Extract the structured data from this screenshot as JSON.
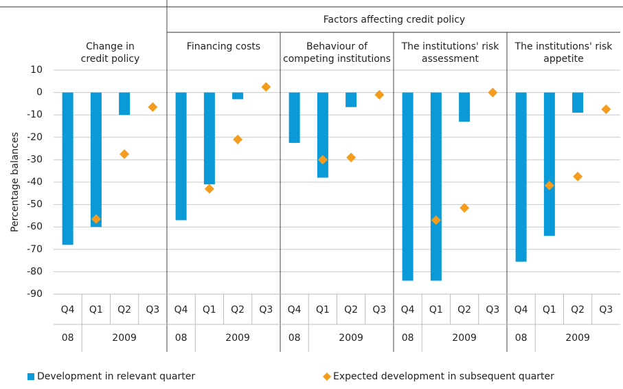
{
  "chart_data": {
    "type": "bar",
    "super_group": "Factors affecting credit policy",
    "y_label": "Percentage balances",
    "groups": [
      {
        "name_lines": [
          "Change in",
          "credit policy"
        ],
        "quarters": [
          "Q4",
          "Q1",
          "Q2",
          "Q3"
        ],
        "years": [
          "08",
          "2009"
        ]
      },
      {
        "name_lines": [
          "Financing costs"
        ],
        "quarters": [
          "Q4",
          "Q1",
          "Q2",
          "Q3"
        ],
        "years": [
          "08",
          "2009"
        ]
      },
      {
        "name_lines": [
          "Behaviour of",
          "competing institutions"
        ],
        "quarters": [
          "Q4",
          "Q1",
          "Q2",
          "Q3"
        ],
        "years": [
          "08",
          "2009"
        ]
      },
      {
        "name_lines": [
          "The institutions' risk",
          "assessment"
        ],
        "quarters": [
          "Q4",
          "Q1",
          "Q2",
          "Q3"
        ],
        "years": [
          "08",
          "2009"
        ]
      },
      {
        "name_lines": [
          "The institutions' risk",
          "appetite"
        ],
        "quarters": [
          "Q4",
          "Q1",
          "Q2",
          "Q3"
        ],
        "years": [
          "08",
          "2009"
        ]
      }
    ],
    "series": [
      {
        "name": "Development in relevant quarter",
        "color": "#0a9ad7",
        "marker": "bar",
        "values": [
          -68,
          -60,
          -10,
          null,
          -57,
          -41,
          -3,
          null,
          -22.5,
          -38,
          -6.5,
          null,
          -84,
          -84,
          -13,
          null,
          -75.5,
          -64,
          -9,
          null
        ]
      },
      {
        "name": "Expected development in subsequent quarter",
        "color": "#f39c1e",
        "marker": "diamond",
        "values": [
          null,
          -56.5,
          -27.5,
          -6.5,
          null,
          -43,
          -21,
          2.5,
          null,
          -30,
          -29,
          -1,
          null,
          -57,
          -51.5,
          0,
          null,
          -41.5,
          -37.5,
          -7.5
        ]
      }
    ],
    "ylim": [
      -90,
      10
    ],
    "yticks": [
      10,
      0,
      -10,
      -20,
      -30,
      -40,
      -50,
      -60,
      -70,
      -80,
      -90
    ],
    "grid": true
  }
}
